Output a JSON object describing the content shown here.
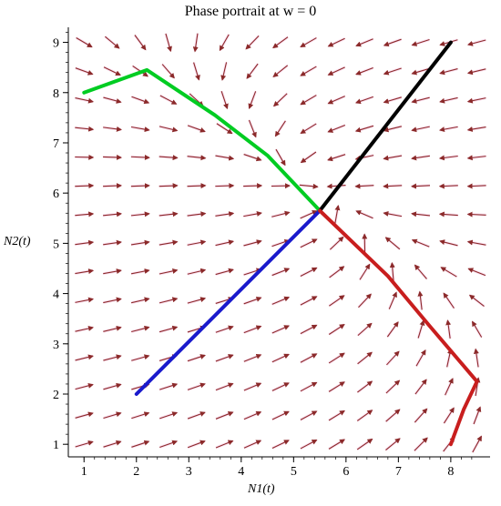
{
  "chart_data": {
    "type": "line",
    "title": "Phase portrait at w = 0",
    "xlabel": "N1(t)",
    "ylabel": "N2(t)",
    "xlim": [
      0.7,
      8.75
    ],
    "ylim": [
      0.75,
      9.3
    ],
    "xticks": [
      1,
      2,
      3,
      4,
      5,
      6,
      7,
      8
    ],
    "yticks": [
      1,
      2,
      3,
      4,
      5,
      6,
      7,
      8,
      9
    ],
    "equilibrium": [
      5.5,
      5.65
    ],
    "vector_field": {
      "type": "direction-field",
      "x_range": [
        1,
        8.5
      ],
      "y_range": [
        1,
        9
      ],
      "steps": 15,
      "color": "#8b2a2a",
      "highlight_color": "#f3a6d4"
    },
    "series": [
      {
        "color": "#00cc22",
        "points": [
          [
            1.0,
            8.0
          ],
          [
            2.2,
            8.45
          ],
          [
            3.5,
            7.55
          ],
          [
            4.5,
            6.75
          ],
          [
            5.5,
            5.65
          ]
        ]
      },
      {
        "color": "#000000",
        "points": [
          [
            8.0,
            9.0
          ],
          [
            5.5,
            5.65
          ]
        ]
      },
      {
        "color": "#1a1acc",
        "points": [
          [
            2.0,
            2.0
          ],
          [
            5.5,
            5.65
          ]
        ]
      },
      {
        "color": "#c81e1e",
        "points": [
          [
            8.0,
            1.0
          ],
          [
            8.25,
            1.7
          ],
          [
            8.5,
            2.25
          ],
          [
            7.6,
            3.35
          ],
          [
            6.8,
            4.35
          ],
          [
            5.5,
            5.65
          ]
        ]
      }
    ]
  }
}
